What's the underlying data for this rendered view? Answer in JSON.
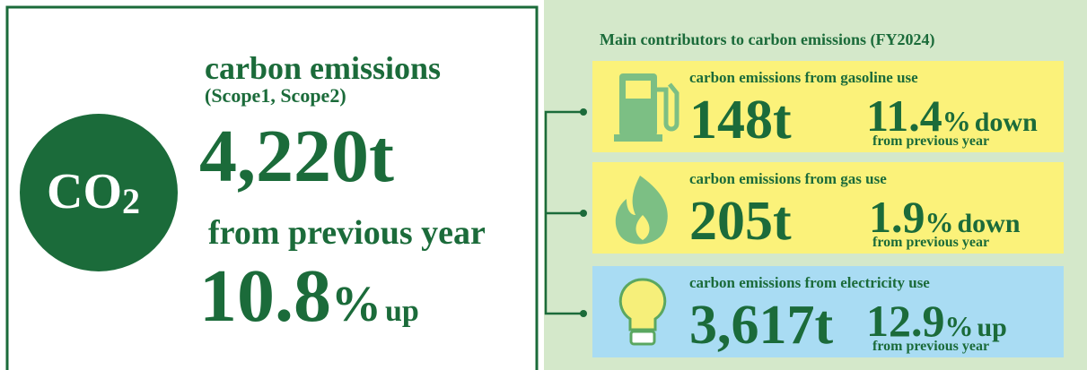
{
  "summary": {
    "label": "carbon emissions",
    "scope": "(Scope1, Scope2)",
    "symbol": "CO",
    "symbol_sub": "2",
    "amount": "4,220t",
    "change_label": "from previous year",
    "change_value": "10.8",
    "change_unit": "%",
    "change_direction": "up"
  },
  "contributors": {
    "title": "Main contributors to carbon emissions (FY2024)",
    "items": [
      {
        "label": "carbon emissions from gasoline use",
        "amount": "148t",
        "change_value": "11.4",
        "change_unit": "%",
        "change_direction": "down",
        "change_label": "from previous year"
      },
      {
        "label": "carbon emissions from gas use",
        "amount": "205t",
        "change_value": "1.9",
        "change_unit": "%",
        "change_direction": "down",
        "change_label": "from previous year"
      },
      {
        "label": "carbon emissions from electricity use",
        "amount": "3,617t",
        "change_value": "12.9",
        "change_unit": "%",
        "change_direction": "up",
        "change_label": "from previous year"
      }
    ]
  }
}
